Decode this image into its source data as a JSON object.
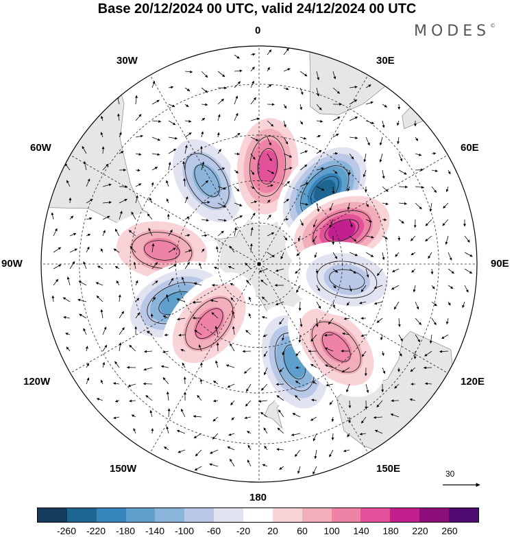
{
  "title": "Base 20/12/2024 00 UTC, valid 24/12/2024 00 UTC",
  "brand": "MODES",
  "brand_mark": "©",
  "longitude_labels": {
    "top": "0",
    "bottom": "180",
    "left": "90W",
    "right": "90E",
    "l30w": "30W",
    "l60w": "60W",
    "l120w": "120W",
    "l150w": "150W",
    "l30e": "30E",
    "l60e": "60E",
    "l120e": "120E",
    "l150e": "150E"
  },
  "reference_vector": "30",
  "colorbar": {
    "colors": [
      "#143a5c",
      "#1f6592",
      "#3584bb",
      "#5e9fcc",
      "#8bb4da",
      "#b8c8e6",
      "#e2e3f1",
      "#ffffff",
      "#f8d4d8",
      "#f2afbb",
      "#ee83a6",
      "#e2519a",
      "#c3208f",
      "#8a0d78",
      "#4e0a6e"
    ],
    "ticks": [
      "-260",
      "-220",
      "-180",
      "-140",
      "-100",
      "-60",
      "-20",
      "20",
      "60",
      "100",
      "140",
      "180",
      "220",
      "260"
    ]
  },
  "chart_data": {
    "type": "heatmap",
    "projection": "south polar stereographic",
    "title": "Base 20/12/2024 00 UTC, valid 24/12/2024 00 UTC",
    "contour_levels": [
      -260,
      -220,
      -180,
      -140,
      -100,
      -60,
      -20,
      20,
      60,
      100,
      140,
      180,
      220,
      260
    ],
    "anomaly_centers_approx": [
      {
        "lon": -32,
        "lat": -55,
        "value": -140
      },
      {
        "lon": 5,
        "lat": -55,
        "value": 160
      },
      {
        "lon": 42,
        "lat": -55,
        "value": -230
      },
      {
        "lon": 68,
        "lat": -58,
        "value": 200
      },
      {
        "lon": -82,
        "lat": -55,
        "value": 130
      },
      {
        "lon": -115,
        "lat": -57,
        "value": -160
      },
      {
        "lon": -140,
        "lat": -62,
        "value": 110
      },
      {
        "lon": 160,
        "lat": -53,
        "value": -160
      },
      {
        "lon": 137,
        "lat": -50,
        "value": 120
      },
      {
        "lon": 100,
        "lat": -58,
        "value": -80
      }
    ],
    "reference_vector": 30
  }
}
